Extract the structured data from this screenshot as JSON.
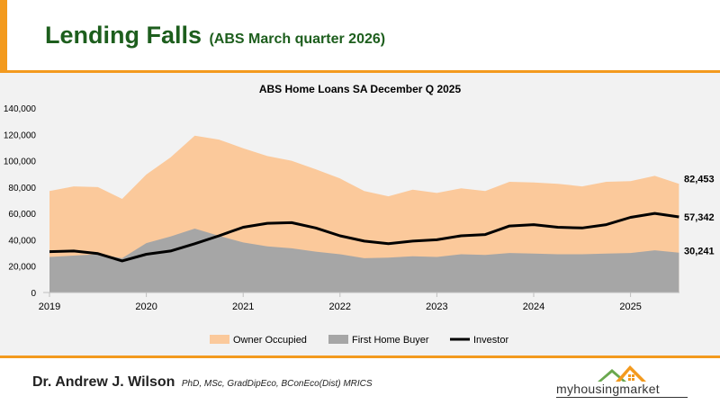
{
  "header": {
    "title": "Lending Falls",
    "subtitle": "(ABS March quarter 2026)"
  },
  "colors": {
    "accent": "#f39a1e",
    "title": "#1d5e1d",
    "owner_occupied": "#fbc99b",
    "first_home_buyer": "#a6a6a6",
    "investor": "#000000"
  },
  "chart_data": {
    "type": "area",
    "title": "ABS Home Loans SA December Q 2025",
    "x_ticks": [
      "2019",
      "2020",
      "2021",
      "2022",
      "2023",
      "2024",
      "2025"
    ],
    "y_ticks": [
      "0",
      "20,000",
      "40,000",
      "60,000",
      "80,000",
      "100,000",
      "120,000",
      "140,000"
    ],
    "ylim": [
      0,
      140000
    ],
    "x": [
      "2019 Q1",
      "2019 Q2",
      "2019 Q3",
      "2019 Q4",
      "2020 Q1",
      "2020 Q2",
      "2020 Q3",
      "2020 Q4",
      "2021 Q1",
      "2021 Q2",
      "2021 Q3",
      "2021 Q4",
      "2022 Q1",
      "2022 Q2",
      "2022 Q3",
      "2022 Q4",
      "2023 Q1",
      "2023 Q2",
      "2023 Q3",
      "2023 Q4",
      "2024 Q1",
      "2024 Q2",
      "2024 Q3",
      "2024 Q4",
      "2025 Q1",
      "2025 Q2",
      "2025 Q3"
    ],
    "series": [
      {
        "name": "Owner Occupied",
        "style": "area",
        "values": [
          77000,
          80500,
          80000,
          71000,
          89500,
          102500,
          119000,
          116000,
          109500,
          103500,
          100000,
          93500,
          86500,
          77000,
          73000,
          78000,
          75500,
          79000,
          77000,
          84000,
          83500,
          82500,
          80500,
          84000,
          84500,
          88500,
          82453
        ]
      },
      {
        "name": "First Home Buyer",
        "style": "area",
        "values": [
          27000,
          28000,
          29000,
          26000,
          37500,
          42500,
          48500,
          43000,
          38000,
          35000,
          33500,
          31000,
          29000,
          26000,
          26500,
          27500,
          27000,
          29000,
          28500,
          30000,
          29500,
          29000,
          29000,
          29500,
          30000,
          32000,
          30241
        ]
      },
      {
        "name": "Investor",
        "style": "line",
        "values": [
          31000,
          31500,
          29500,
          24000,
          29000,
          31500,
          37000,
          43000,
          49500,
          52500,
          53000,
          49000,
          43000,
          39000,
          37000,
          39000,
          40000,
          43000,
          44000,
          50500,
          51500,
          49500,
          49000,
          51500,
          57000,
          60000,
          57342
        ]
      }
    ],
    "end_labels": [
      "82,453",
      "57,342",
      "30,241"
    ],
    "legend": {
      "placement": "bottom",
      "items": [
        "Owner Occupied",
        "First Home Buyer",
        "Investor"
      ]
    },
    "grid": false
  },
  "footer": {
    "author_name": "Dr. Andrew J. Wilson",
    "author_credentials": "PhD, MSc, GradDipEco, BConEco(Dist) MRICS",
    "logo_text": "myhousingmarket",
    "logo_icon": "house-roof-icon"
  }
}
